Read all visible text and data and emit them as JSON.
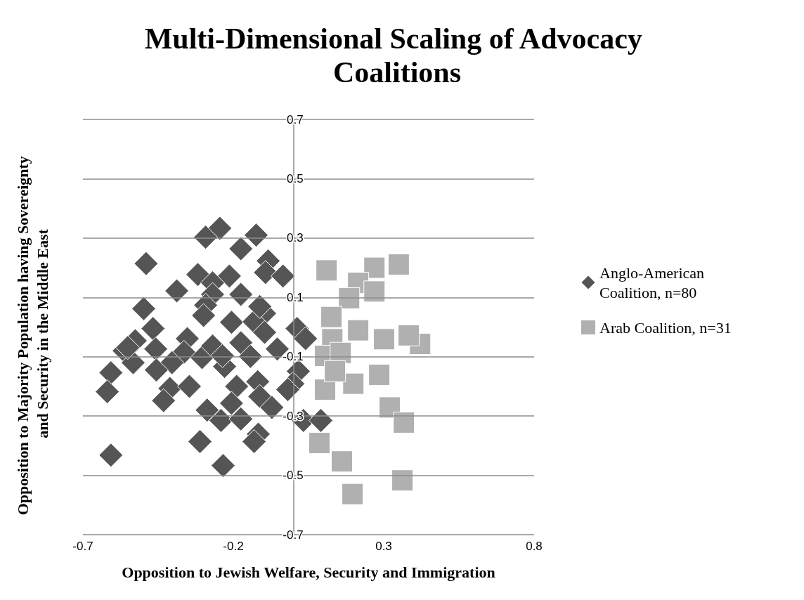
{
  "chart_data": {
    "type": "scatter",
    "title": "Multi-Dimensional Scaling of Advocacy Coalitions",
    "xlabel": "Opposition to Jewish Welfare, Security and Immigration",
    "ylabel": "Opposition to Majority Population having Sovereignty and Security in the Middle East",
    "xlim": [
      -0.7,
      0.8
    ],
    "xticks": [
      -0.7,
      -0.2,
      0.3,
      0.8
    ],
    "ylim": [
      -0.7,
      0.7
    ],
    "yticks": [
      -0.7,
      -0.5,
      -0.3,
      -0.1,
      0.1,
      0.3,
      0.5,
      0.7
    ],
    "grid": "y",
    "legend": "right",
    "series": [
      {
        "name": "Anglo-American Coalition, n=80",
        "color": "#555555",
        "marker": "diamond",
        "x": [
          -0.245,
          -0.292,
          -0.124,
          -0.175,
          -0.49,
          -0.318,
          -0.213,
          -0.084,
          -0.093,
          -0.035,
          -0.388,
          -0.269,
          -0.269,
          -0.175,
          -0.498,
          -0.292,
          -0.299,
          -0.096,
          -0.206,
          -0.131,
          -0.467,
          -0.526,
          -0.563,
          -0.458,
          -0.353,
          -0.364,
          -0.404,
          -0.533,
          -0.456,
          -0.304,
          -0.269,
          -0.175,
          -0.054,
          -0.229,
          -0.607,
          -0.619,
          -0.411,
          -0.346,
          -0.432,
          -0.189,
          -0.119,
          0.016,
          -0.002,
          -0.112,
          -0.287,
          -0.241,
          0.033,
          -0.311,
          -0.117,
          -0.131,
          -0.607,
          -0.234,
          0.012,
          0.04,
          0.091,
          -0.112,
          -0.236,
          -0.143,
          -0.096,
          -0.206,
          -0.175,
          -0.072,
          -0.019,
          -0.551
        ],
        "values": [
          0.333,
          0.303,
          0.31,
          0.264,
          0.214,
          0.177,
          0.172,
          0.223,
          0.184,
          0.172,
          0.122,
          0.149,
          0.11,
          0.11,
          0.062,
          0.074,
          0.039,
          0.046,
          0.016,
          0.018,
          -0.005,
          -0.046,
          -0.08,
          -0.074,
          -0.039,
          -0.085,
          -0.12,
          -0.12,
          -0.145,
          -0.103,
          -0.064,
          -0.053,
          -0.074,
          -0.133,
          -0.154,
          -0.218,
          -0.207,
          -0.2,
          -0.248,
          -0.2,
          -0.184,
          -0.149,
          -0.191,
          -0.234,
          -0.28,
          -0.315,
          -0.315,
          -0.386,
          -0.361,
          -0.386,
          -0.432,
          -0.467,
          -0.005,
          -0.039,
          -0.315,
          0.069,
          -0.097,
          -0.099,
          -0.018,
          -0.257,
          -0.31,
          -0.271,
          -0.211,
          -0.069
        ]
      },
      {
        "name": "Arab Coalition, n=31",
        "color": "#b0b0b0",
        "marker": "square",
        "x": [
          0.11,
          0.269,
          0.35,
          0.215,
          0.269,
          0.185,
          0.126,
          0.421,
          0.129,
          0.105,
          0.157,
          0.199,
          0.105,
          0.285,
          0.32,
          0.367,
          0.086,
          0.161,
          0.362,
          0.196,
          0.383,
          0.215,
          0.301,
          0.138
        ],
        "values": [
          0.191,
          0.2,
          0.211,
          0.149,
          0.12,
          0.097,
          0.034,
          -0.057,
          -0.041,
          -0.097,
          -0.087,
          -0.191,
          -0.211,
          -0.161,
          -0.271,
          -0.322,
          -0.391,
          -0.453,
          -0.517,
          -0.563,
          -0.028,
          -0.011,
          -0.041,
          -0.149
        ]
      }
    ]
  }
}
